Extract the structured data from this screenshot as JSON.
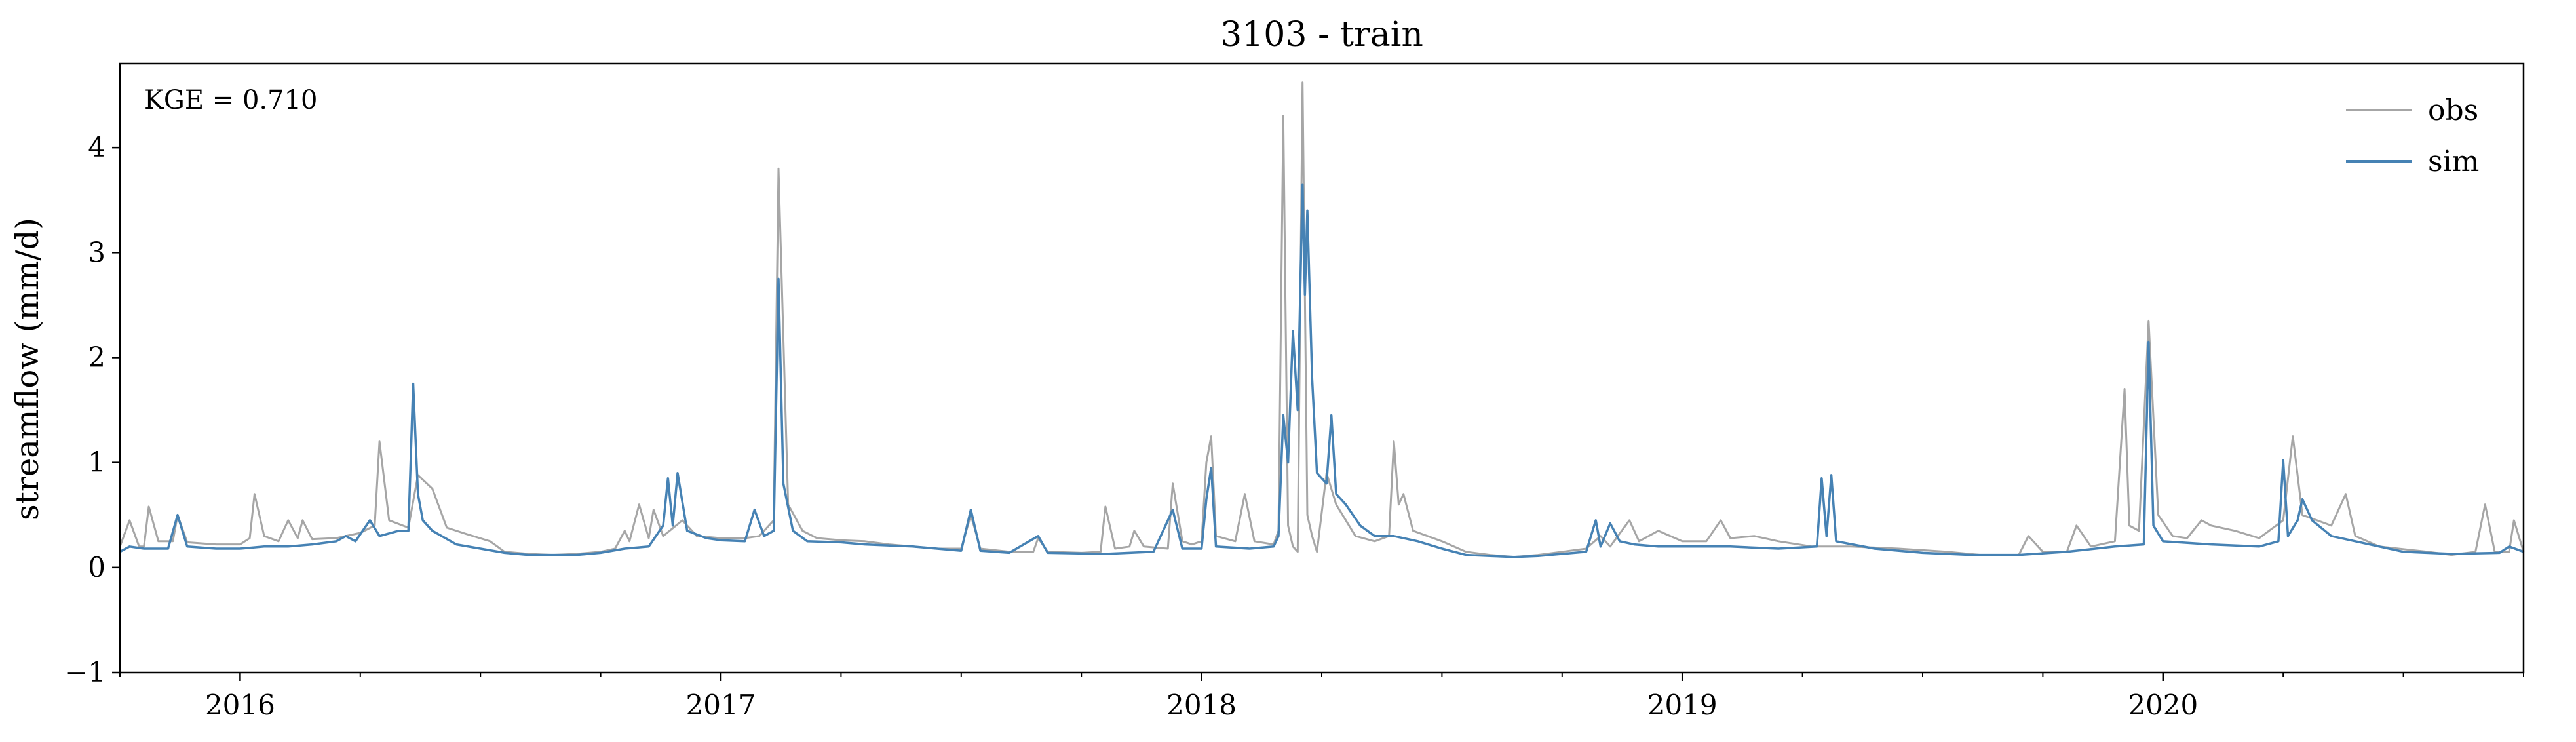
{
  "chart_data": {
    "type": "line",
    "title": "3103 - train",
    "xlabel": "",
    "ylabel": "streamflow (mm/d)",
    "ylim": [
      -1,
      4.8
    ],
    "yticks": [
      -1,
      0,
      1,
      2,
      3,
      4
    ],
    "ytick_labels": [
      "−1",
      "0",
      "1",
      "2",
      "3",
      "4"
    ],
    "xlim": [
      2015.75,
      2020.75
    ],
    "xticks": [
      2016,
      2017,
      2018,
      2019,
      2020
    ],
    "xtick_labels": [
      "2016",
      "2017",
      "2018",
      "2019",
      "2020"
    ],
    "minor_xticks_per_year": 4,
    "annotation": "KGE = 0.710",
    "legend_position": "top-right",
    "series": [
      {
        "name": "obs",
        "color": "#a6a6a6",
        "points": [
          [
            2015.75,
            0.2
          ],
          [
            2015.77,
            0.45
          ],
          [
            2015.79,
            0.2
          ],
          [
            2015.8,
            0.2
          ],
          [
            2015.81,
            0.58
          ],
          [
            2015.83,
            0.25
          ],
          [
            2015.86,
            0.25
          ],
          [
            2015.87,
            0.5
          ],
          [
            2015.89,
            0.24
          ],
          [
            2015.95,
            0.22
          ],
          [
            2016.0,
            0.22
          ],
          [
            2016.02,
            0.28
          ],
          [
            2016.03,
            0.7
          ],
          [
            2016.05,
            0.3
          ],
          [
            2016.08,
            0.25
          ],
          [
            2016.1,
            0.45
          ],
          [
            2016.12,
            0.28
          ],
          [
            2016.13,
            0.45
          ],
          [
            2016.15,
            0.27
          ],
          [
            2016.2,
            0.28
          ],
          [
            2016.25,
            0.33
          ],
          [
            2016.28,
            0.4
          ],
          [
            2016.29,
            1.2
          ],
          [
            2016.31,
            0.45
          ],
          [
            2016.35,
            0.38
          ],
          [
            2016.37,
            0.88
          ],
          [
            2016.4,
            0.75
          ],
          [
            2016.43,
            0.38
          ],
          [
            2016.47,
            0.32
          ],
          [
            2016.52,
            0.25
          ],
          [
            2016.55,
            0.15
          ],
          [
            2016.6,
            0.13
          ],
          [
            2016.65,
            0.12
          ],
          [
            2016.7,
            0.13
          ],
          [
            2016.75,
            0.15
          ],
          [
            2016.78,
            0.18
          ],
          [
            2016.8,
            0.35
          ],
          [
            2016.81,
            0.25
          ],
          [
            2016.83,
            0.6
          ],
          [
            2016.85,
            0.28
          ],
          [
            2016.86,
            0.55
          ],
          [
            2016.88,
            0.3
          ],
          [
            2016.92,
            0.45
          ],
          [
            2016.95,
            0.3
          ],
          [
            2017.0,
            0.28
          ],
          [
            2017.05,
            0.28
          ],
          [
            2017.08,
            0.3
          ],
          [
            2017.11,
            0.45
          ],
          [
            2017.12,
            3.8
          ],
          [
            2017.14,
            0.6
          ],
          [
            2017.17,
            0.35
          ],
          [
            2017.2,
            0.28
          ],
          [
            2017.25,
            0.26
          ],
          [
            2017.3,
            0.25
          ],
          [
            2017.35,
            0.22
          ],
          [
            2017.4,
            0.2
          ],
          [
            2017.45,
            0.18
          ],
          [
            2017.5,
            0.18
          ],
          [
            2017.52,
            0.5
          ],
          [
            2017.54,
            0.18
          ],
          [
            2017.6,
            0.15
          ],
          [
            2017.65,
            0.15
          ],
          [
            2017.66,
            0.28
          ],
          [
            2017.68,
            0.15
          ],
          [
            2017.75,
            0.14
          ],
          [
            2017.79,
            0.15
          ],
          [
            2017.8,
            0.58
          ],
          [
            2017.82,
            0.18
          ],
          [
            2017.85,
            0.2
          ],
          [
            2017.86,
            0.35
          ],
          [
            2017.88,
            0.2
          ],
          [
            2017.93,
            0.18
          ],
          [
            2017.94,
            0.8
          ],
          [
            2017.96,
            0.25
          ],
          [
            2017.98,
            0.22
          ],
          [
            2018.0,
            0.25
          ],
          [
            2018.01,
            1.0
          ],
          [
            2018.02,
            1.25
          ],
          [
            2018.03,
            0.3
          ],
          [
            2018.07,
            0.25
          ],
          [
            2018.09,
            0.7
          ],
          [
            2018.11,
            0.25
          ],
          [
            2018.15,
            0.22
          ],
          [
            2018.16,
            0.35
          ],
          [
            2018.17,
            4.3
          ],
          [
            2018.18,
            0.4
          ],
          [
            2018.19,
            0.2
          ],
          [
            2018.2,
            0.15
          ],
          [
            2018.21,
            4.62
          ],
          [
            2018.22,
            0.5
          ],
          [
            2018.23,
            0.3
          ],
          [
            2018.24,
            0.15
          ],
          [
            2018.26,
            0.9
          ],
          [
            2018.28,
            0.6
          ],
          [
            2018.32,
            0.3
          ],
          [
            2018.36,
            0.25
          ],
          [
            2018.39,
            0.3
          ],
          [
            2018.4,
            1.2
          ],
          [
            2018.41,
            0.6
          ],
          [
            2018.42,
            0.7
          ],
          [
            2018.44,
            0.35
          ],
          [
            2018.5,
            0.25
          ],
          [
            2018.55,
            0.15
          ],
          [
            2018.6,
            0.12
          ],
          [
            2018.65,
            0.1
          ],
          [
            2018.7,
            0.12
          ],
          [
            2018.75,
            0.15
          ],
          [
            2018.8,
            0.18
          ],
          [
            2018.83,
            0.3
          ],
          [
            2018.85,
            0.2
          ],
          [
            2018.89,
            0.45
          ],
          [
            2018.91,
            0.25
          ],
          [
            2018.95,
            0.35
          ],
          [
            2019.0,
            0.25
          ],
          [
            2019.05,
            0.25
          ],
          [
            2019.08,
            0.45
          ],
          [
            2019.1,
            0.28
          ],
          [
            2019.15,
            0.3
          ],
          [
            2019.2,
            0.25
          ],
          [
            2019.27,
            0.2
          ],
          [
            2019.35,
            0.2
          ],
          [
            2019.45,
            0.18
          ],
          [
            2019.55,
            0.15
          ],
          [
            2019.62,
            0.12
          ],
          [
            2019.7,
            0.12
          ],
          [
            2019.72,
            0.3
          ],
          [
            2019.75,
            0.15
          ],
          [
            2019.8,
            0.15
          ],
          [
            2019.82,
            0.4
          ],
          [
            2019.85,
            0.2
          ],
          [
            2019.9,
            0.25
          ],
          [
            2019.92,
            1.7
          ],
          [
            2019.93,
            0.4
          ],
          [
            2019.95,
            0.35
          ],
          [
            2019.97,
            2.35
          ],
          [
            2019.99,
            0.5
          ],
          [
            2020.02,
            0.3
          ],
          [
            2020.05,
            0.28
          ],
          [
            2020.08,
            0.45
          ],
          [
            2020.1,
            0.4
          ],
          [
            2020.15,
            0.35
          ],
          [
            2020.2,
            0.28
          ],
          [
            2020.25,
            0.45
          ],
          [
            2020.27,
            1.25
          ],
          [
            2020.29,
            0.5
          ],
          [
            2020.35,
            0.4
          ],
          [
            2020.38,
            0.7
          ],
          [
            2020.4,
            0.3
          ],
          [
            2020.45,
            0.2
          ],
          [
            2020.55,
            0.15
          ],
          [
            2020.6,
            0.12
          ],
          [
            2020.65,
            0.15
          ],
          [
            2020.67,
            0.6
          ],
          [
            2020.69,
            0.15
          ],
          [
            2020.72,
            0.15
          ],
          [
            2020.73,
            0.45
          ],
          [
            2020.75,
            0.15
          ]
        ]
      },
      {
        "name": "sim",
        "color": "#4682b4",
        "points": [
          [
            2015.75,
            0.15
          ],
          [
            2015.77,
            0.2
          ],
          [
            2015.8,
            0.18
          ],
          [
            2015.85,
            0.18
          ],
          [
            2015.87,
            0.5
          ],
          [
            2015.89,
            0.2
          ],
          [
            2015.95,
            0.18
          ],
          [
            2016.0,
            0.18
          ],
          [
            2016.05,
            0.2
          ],
          [
            2016.1,
            0.2
          ],
          [
            2016.15,
            0.22
          ],
          [
            2016.2,
            0.25
          ],
          [
            2016.22,
            0.3
          ],
          [
            2016.24,
            0.25
          ],
          [
            2016.27,
            0.45
          ],
          [
            2016.29,
            0.3
          ],
          [
            2016.33,
            0.35
          ],
          [
            2016.35,
            0.35
          ],
          [
            2016.36,
            1.75
          ],
          [
            2016.37,
            0.7
          ],
          [
            2016.38,
            0.45
          ],
          [
            2016.4,
            0.35
          ],
          [
            2016.45,
            0.22
          ],
          [
            2016.5,
            0.18
          ],
          [
            2016.55,
            0.14
          ],
          [
            2016.6,
            0.12
          ],
          [
            2016.65,
            0.12
          ],
          [
            2016.7,
            0.12
          ],
          [
            2016.75,
            0.14
          ],
          [
            2016.8,
            0.18
          ],
          [
            2016.85,
            0.2
          ],
          [
            2016.88,
            0.4
          ],
          [
            2016.89,
            0.85
          ],
          [
            2016.9,
            0.4
          ],
          [
            2016.91,
            0.9
          ],
          [
            2016.93,
            0.35
          ],
          [
            2016.97,
            0.28
          ],
          [
            2017.0,
            0.26
          ],
          [
            2017.05,
            0.25
          ],
          [
            2017.07,
            0.55
          ],
          [
            2017.09,
            0.3
          ],
          [
            2017.11,
            0.35
          ],
          [
            2017.12,
            2.75
          ],
          [
            2017.13,
            0.8
          ],
          [
            2017.15,
            0.35
          ],
          [
            2017.18,
            0.25
          ],
          [
            2017.25,
            0.24
          ],
          [
            2017.3,
            0.22
          ],
          [
            2017.4,
            0.2
          ],
          [
            2017.5,
            0.16
          ],
          [
            2017.52,
            0.55
          ],
          [
            2017.54,
            0.16
          ],
          [
            2017.6,
            0.14
          ],
          [
            2017.66,
            0.3
          ],
          [
            2017.68,
            0.14
          ],
          [
            2017.8,
            0.13
          ],
          [
            2017.9,
            0.15
          ],
          [
            2017.94,
            0.55
          ],
          [
            2017.96,
            0.18
          ],
          [
            2018.0,
            0.18
          ],
          [
            2018.01,
            0.65
          ],
          [
            2018.02,
            0.95
          ],
          [
            2018.03,
            0.2
          ],
          [
            2018.1,
            0.18
          ],
          [
            2018.15,
            0.2
          ],
          [
            2018.16,
            0.3
          ],
          [
            2018.17,
            1.45
          ],
          [
            2018.18,
            1.0
          ],
          [
            2018.19,
            2.25
          ],
          [
            2018.2,
            1.5
          ],
          [
            2018.21,
            3.65
          ],
          [
            2018.215,
            2.6
          ],
          [
            2018.22,
            3.4
          ],
          [
            2018.23,
            1.8
          ],
          [
            2018.24,
            0.9
          ],
          [
            2018.26,
            0.8
          ],
          [
            2018.27,
            1.45
          ],
          [
            2018.28,
            0.7
          ],
          [
            2018.3,
            0.6
          ],
          [
            2018.33,
            0.4
          ],
          [
            2018.36,
            0.3
          ],
          [
            2018.4,
            0.3
          ],
          [
            2018.45,
            0.25
          ],
          [
            2018.5,
            0.18
          ],
          [
            2018.55,
            0.12
          ],
          [
            2018.6,
            0.11
          ],
          [
            2018.65,
            0.1
          ],
          [
            2018.7,
            0.11
          ],
          [
            2018.75,
            0.13
          ],
          [
            2018.8,
            0.15
          ],
          [
            2018.82,
            0.45
          ],
          [
            2018.83,
            0.2
          ],
          [
            2018.85,
            0.42
          ],
          [
            2018.87,
            0.25
          ],
          [
            2018.9,
            0.22
          ],
          [
            2018.95,
            0.2
          ],
          [
            2019.0,
            0.2
          ],
          [
            2019.1,
            0.2
          ],
          [
            2019.2,
            0.18
          ],
          [
            2019.28,
            0.2
          ],
          [
            2019.29,
            0.85
          ],
          [
            2019.3,
            0.3
          ],
          [
            2019.31,
            0.88
          ],
          [
            2019.32,
            0.25
          ],
          [
            2019.4,
            0.18
          ],
          [
            2019.5,
            0.14
          ],
          [
            2019.6,
            0.12
          ],
          [
            2019.7,
            0.12
          ],
          [
            2019.8,
            0.15
          ],
          [
            2019.9,
            0.2
          ],
          [
            2019.96,
            0.22
          ],
          [
            2019.97,
            2.15
          ],
          [
            2019.98,
            0.4
          ],
          [
            2020.0,
            0.25
          ],
          [
            2020.1,
            0.22
          ],
          [
            2020.2,
            0.2
          ],
          [
            2020.24,
            0.25
          ],
          [
            2020.25,
            1.02
          ],
          [
            2020.26,
            0.3
          ],
          [
            2020.28,
            0.45
          ],
          [
            2020.29,
            0.65
          ],
          [
            2020.31,
            0.45
          ],
          [
            2020.35,
            0.3
          ],
          [
            2020.4,
            0.25
          ],
          [
            2020.5,
            0.15
          ],
          [
            2020.6,
            0.13
          ],
          [
            2020.7,
            0.14
          ],
          [
            2020.72,
            0.2
          ],
          [
            2020.75,
            0.15
          ]
        ]
      }
    ]
  }
}
